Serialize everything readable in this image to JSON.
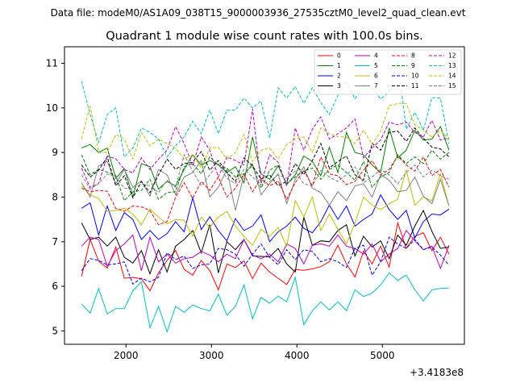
{
  "chart_data": {
    "type": "line",
    "suptitle": "Data file: modeM0/AS1A09_038T15_9000003936_27535cztM0_level2_quad_clean.evt",
    "title": "Quadrant 1 module wise count rates with 100.0s bins.",
    "xlabel": "",
    "ylabel": "",
    "x_offset_label": "+3.4183e8",
    "xlim": [
      1280,
      5960
    ],
    "ylim": [
      4.7,
      11.37
    ],
    "xticks": [
      2000,
      3000,
      4000,
      5000
    ],
    "yticks": [
      5,
      6,
      7,
      8,
      9,
      10,
      11
    ],
    "x": [
      1480,
      1580,
      1680,
      1780,
      1880,
      1980,
      2080,
      2180,
      2280,
      2380,
      2480,
      2580,
      2680,
      2780,
      2880,
      2980,
      3080,
      3180,
      3280,
      3380,
      3480,
      3580,
      3680,
      3780,
      3880,
      3980,
      4080,
      4180,
      4280,
      4380,
      4480,
      4580,
      4680,
      4780,
      4880,
      4980,
      5080,
      5180,
      5280,
      5380,
      5480,
      5580,
      5680,
      5780
    ],
    "series": [
      {
        "name": "0",
        "color": "#ff0000",
        "dash": false,
        "values": [
          6.22,
          7.05,
          6.56,
          6.41,
          6.88,
          6.18,
          6.2,
          6.17,
          5.9,
          6.3,
          6.58,
          6.8,
          6.38,
          6.25,
          6.58,
          6.35,
          5.92,
          6.5,
          6.42,
          6.57,
          6.17,
          6.52,
          6.32,
          6.18,
          6.04,
          6.38,
          6.36,
          6.39,
          6.44,
          6.55,
          6.92,
          6.5,
          6.21,
          6.79,
          6.5,
          6.9,
          6.43,
          7.42,
          6.85,
          7.12,
          7.2,
          6.8,
          7.1,
          6.72
        ]
      },
      {
        "name": "1",
        "color": "#008000",
        "dash": false,
        "values": [
          9.1,
          9.18,
          9.0,
          9.1,
          8.42,
          8.64,
          8.0,
          8.75,
          8.68,
          8.18,
          8.35,
          8.25,
          8.62,
          8.95,
          8.72,
          8.82,
          8.72,
          8.55,
          8.68,
          8.32,
          9.35,
          8.52,
          8.4,
          8.7,
          8.28,
          8.5,
          8.92,
          8.8,
          8.48,
          9.12,
          8.55,
          9.45,
          9.0,
          8.95,
          8.72,
          8.55,
          9.55,
          8.88,
          9.05,
          9.5,
          9.28,
          9.3,
          9.58,
          9.05
        ]
      },
      {
        "name": "2",
        "color": "#0000ff",
        "dash": false,
        "values": [
          7.75,
          7.87,
          7.15,
          7.8,
          7.25,
          7.65,
          7.5,
          7.05,
          7.25,
          7.05,
          7.18,
          7.45,
          7.22,
          7.98,
          7.27,
          7.56,
          7.25,
          7.02,
          7.52,
          7.25,
          7.35,
          7.6,
          7.0,
          7.22,
          7.35,
          7.55,
          7.3,
          7.2,
          7.45,
          7.82,
          7.5,
          7.8,
          7.35,
          7.5,
          7.62,
          8.05,
          7.72,
          7.5,
          7.7,
          7.08,
          7.45,
          7.62,
          7.6,
          7.73
        ]
      },
      {
        "name": "3",
        "color": "#000000",
        "dash": false,
        "values": [
          7.42,
          7.05,
          7.1,
          6.9,
          7.1,
          6.65,
          6.52,
          6.8,
          6.28,
          6.82,
          6.32,
          6.9,
          7.05,
          7.25,
          6.75,
          7.38,
          6.3,
          7.0,
          6.82,
          7.05,
          6.68,
          6.67,
          6.66,
          6.85,
          6.5,
          6.32,
          7.55,
          6.92,
          7.02,
          7.0,
          7.25,
          7.38,
          6.68,
          7.12,
          6.88,
          7.02,
          6.62,
          7.15,
          6.92,
          7.35,
          7.7,
          7.23,
          6.85,
          6.88
        ]
      },
      {
        "name": "4",
        "color": "#bf00bf",
        "dash": false,
        "values": [
          6.9,
          7.1,
          7.05,
          6.45,
          6.8,
          6.95,
          7.15,
          6.35,
          7.1,
          6.55,
          6.72,
          6.52,
          6.62,
          6.65,
          6.78,
          6.7,
          6.55,
          6.72,
          6.62,
          7.05,
          6.7,
          6.62,
          6.72,
          6.55,
          6.95,
          6.85,
          6.5,
          6.92,
          6.95,
          6.9,
          7.15,
          6.9,
          6.85,
          6.72,
          6.95,
          6.55,
          6.72,
          6.85,
          7.25,
          7.02,
          6.82,
          6.9,
          6.4,
          6.92
        ]
      },
      {
        "name": "5",
        "color": "#00bfbf",
        "dash": false,
        "values": [
          5.6,
          5.4,
          5.95,
          5.38,
          5.5,
          5.5,
          5.9,
          6.1,
          5.07,
          5.55,
          4.98,
          5.55,
          5.42,
          5.58,
          5.5,
          5.45,
          5.82,
          5.35,
          5.55,
          6.03,
          5.27,
          5.75,
          5.62,
          5.78,
          5.65,
          6.2,
          5.14,
          5.45,
          5.65,
          5.47,
          5.65,
          5.45,
          5.92,
          5.77,
          5.85,
          6.03,
          6.3,
          6.13,
          6.25,
          5.92,
          5.67,
          5.92,
          5.95,
          5.96
        ]
      },
      {
        "name": "6",
        "color": "#bfbf00",
        "dash": false,
        "values": [
          8.25,
          8.05,
          7.97,
          7.68,
          7.7,
          7.75,
          7.62,
          7.38,
          7.73,
          7.55,
          7.4,
          7.5,
          7.48,
          7.12,
          7.55,
          7.32,
          7.55,
          7.68,
          7.35,
          7.12,
          6.92,
          7.28,
          7.12,
          7.32,
          6.9,
          7.92,
          7.55,
          8.0,
          7.25,
          7.62,
          7.28,
          6.95,
          7.42,
          8.0,
          7.82,
          7.72,
          7.85,
          7.95,
          8.6,
          7.82,
          8.0,
          7.92,
          8.52,
          7.8
        ]
      },
      {
        "name": "7",
        "color": "#808080",
        "dash": false,
        "values": [
          8.32,
          8.0,
          8.7,
          8.8,
          8.3,
          8.62,
          8.22,
          8.36,
          8.02,
          8.62,
          8.5,
          8.05,
          8.45,
          8.55,
          8.82,
          8.0,
          8.22,
          8.62,
          7.7,
          8.5,
          8.75,
          8.05,
          8.3,
          8.52,
          7.85,
          8.4,
          8.68,
          8.2,
          8.1,
          7.82,
          8.12,
          7.92,
          8.25,
          8.3,
          8.0,
          8.5,
          8.38,
          8.12,
          8.15,
          8.45,
          8.02,
          7.85,
          8.4,
          7.8
        ]
      },
      {
        "name": "8",
        "color": "#ff0000",
        "dash": true,
        "values": [
          8.2,
          8.12,
          8.15,
          8.13,
          7.75,
          7.68,
          7.8,
          7.78,
          7.7,
          7.38,
          7.45,
          8.0,
          8.32,
          7.97,
          8.35,
          8.15,
          8.45,
          8.0,
          8.2,
          8.52,
          8.12,
          8.42,
          8.25,
          8.36,
          7.95,
          8.32,
          8.6,
          8.25,
          8.9,
          8.52,
          8.48,
          8.28,
          8.35,
          8.6,
          8.82,
          8.5,
          8.62,
          8.92,
          8.72,
          8.58,
          8.9,
          8.48,
          8.62,
          8.22
        ]
      },
      {
        "name": "9",
        "color": "#008000",
        "dash": true,
        "values": [
          8.95,
          8.5,
          8.62,
          8.56,
          8.48,
          7.92,
          8.12,
          8.15,
          8.4,
          7.95,
          8.1,
          8.12,
          8.68,
          8.75,
          8.52,
          8.9,
          8.72,
          8.65,
          8.45,
          8.52,
          8.7,
          8.2,
          8.6,
          8.72,
          8.3,
          8.45,
          8.58,
          8.65,
          8.4,
          8.62,
          8.72,
          8.55,
          8.38,
          8.8,
          8.22,
          8.45,
          8.55,
          8.95,
          8.75,
          8.9,
          8.75,
          9.05,
          8.85,
          9.0
        ]
      },
      {
        "name": "10",
        "color": "#0000ff",
        "dash": true,
        "values": [
          6.35,
          6.62,
          6.58,
          6.48,
          6.5,
          6.55,
          6.05,
          6.18,
          6.1,
          6.2,
          6.75,
          6.6,
          6.68,
          6.4,
          6.48,
          6.5,
          6.85,
          6.82,
          6.72,
          6.45,
          6.72,
          6.95,
          6.65,
          6.48,
          6.82,
          6.6,
          6.82,
          6.78,
          6.55,
          6.62,
          6.55,
          6.42,
          6.85,
          6.92,
          6.25,
          6.55,
          7.1,
          6.95,
          6.85,
          7.05,
          6.82,
          6.88,
          6.7,
          6.47
        ]
      },
      {
        "name": "11",
        "color": "#000000",
        "dash": true,
        "values": [
          8.72,
          8.45,
          8.6,
          8.9,
          8.25,
          8.48,
          7.98,
          8.35,
          8.1,
          8.5,
          8.85,
          8.62,
          8.75,
          8.78,
          9.02,
          8.6,
          8.82,
          8.55,
          8.35,
          8.88,
          8.7,
          8.4,
          8.5,
          8.25,
          8.35,
          8.75,
          8.5,
          8.82,
          9.2,
          8.65,
          8.8,
          8.92,
          8.5,
          8.38,
          9.2,
          9.05,
          9.45,
          9.48,
          9.25,
          9.55,
          9.32,
          9.12,
          9.08,
          8.9
        ]
      },
      {
        "name": "12",
        "color": "#bf00bf",
        "dash": true,
        "values": [
          8.65,
          8.22,
          8.3,
          8.92,
          8.86,
          8.62,
          8.54,
          8.88,
          8.62,
          8.85,
          9.05,
          9.58,
          9.2,
          8.7,
          9.35,
          9.05,
          8.45,
          8.9,
          8.82,
          8.72,
          9.98,
          8.3,
          8.95,
          8.78,
          8.25,
          9.55,
          9.05,
          9.52,
          9.8,
          9.3,
          9.42,
          9.55,
          9.75,
          8.88,
          9.1,
          9.28,
          9.68,
          9.62,
          9.68,
          9.45,
          9.35,
          9.72,
          9.28,
          9.33
        ]
      },
      {
        "name": "13",
        "color": "#00bfbf",
        "dash": true,
        "values": [
          10.6,
          9.85,
          9.22,
          9.85,
          10.0,
          8.9,
          9.1,
          9.55,
          9.45,
          9.3,
          8.9,
          9.15,
          9.35,
          9.7,
          9.42,
          9.95,
          9.42,
          9.95,
          9.95,
          10.22,
          10.0,
          10.15,
          9.32,
          10.45,
          10.22,
          10.48,
          10.1,
          10.45,
          10.12,
          9.85,
          10.28,
          10.6,
          10.2,
          10.48,
          10.45,
          10.2,
          10.35,
          11.05,
          9.52,
          9.9,
          9.5,
          10.23,
          10.22,
          9.2
        ]
      },
      {
        "name": "14",
        "color": "#bfbf00",
        "dash": true,
        "values": [
          9.3,
          10.05,
          9.0,
          9.0,
          9.4,
          9.3,
          8.85,
          9.45,
          9.15,
          9.3,
          9.2,
          9.1,
          8.85,
          8.95,
          8.65,
          9.1,
          9.12,
          8.85,
          9.0,
          9.4,
          8.8,
          9.05,
          9.1,
          8.85,
          9.18,
          9.3,
          9.35,
          9.0,
          9.55,
          9.42,
          9.35,
          9.35,
          9.2,
          9.5,
          9.18,
          9.48,
          10.05,
          10.1,
          10.1,
          9.62,
          9.5,
          9.35,
          9.5,
          9.3
        ]
      },
      {
        "name": "15",
        "color": "#808080",
        "dash": true,
        "values": [
          8.5,
          8.18,
          8.3,
          8.52,
          8.45,
          8.2,
          8.18,
          8.3,
          8.25,
          8.1,
          8.38,
          8.22,
          8.95,
          8.58,
          8.25,
          8.5,
          8.75,
          8.42,
          8.3,
          8.62,
          8.45,
          8.28,
          8.35,
          8.5,
          8.42,
          8.58,
          8.3,
          8.25,
          8.6,
          8.45,
          8.35,
          8.5,
          8.68,
          8.32,
          8.45,
          8.62,
          8.5,
          8.3,
          8.55,
          8.72,
          8.45,
          8.6,
          8.48,
          8.4
        ]
      }
    ]
  }
}
